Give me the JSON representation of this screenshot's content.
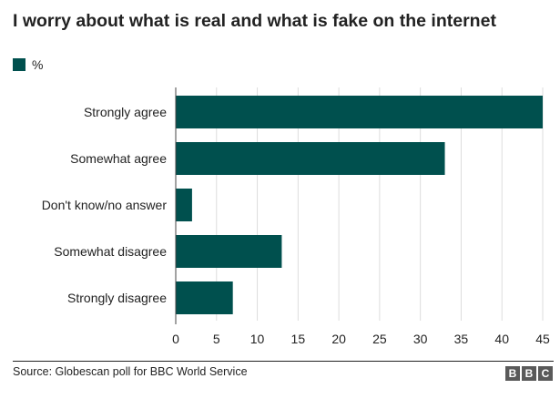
{
  "chart_data": {
    "type": "bar",
    "orientation": "horizontal",
    "title": "I worry about what is real and what is fake on the internet",
    "legend": {
      "label": "%",
      "placement": "top-left"
    },
    "categories": [
      "Strongly agree",
      "Somewhat agree",
      "Don't know/no answer",
      "Somewhat disagree",
      "Strongly disagree"
    ],
    "values": [
      45,
      33,
      2,
      13,
      7
    ],
    "xlim": [
      0,
      45
    ],
    "xticks": [
      0,
      5,
      10,
      15,
      20,
      25,
      30,
      35,
      40,
      45
    ],
    "grid": "vertical",
    "xlabel": "",
    "ylabel": "",
    "colors": {
      "bar": "#00504e",
      "grid": "#dddddd",
      "text": "#222222"
    }
  },
  "footer": {
    "source": "Source: Globescan poll for BBC World Service",
    "logo_letters": [
      "B",
      "B",
      "C"
    ]
  }
}
